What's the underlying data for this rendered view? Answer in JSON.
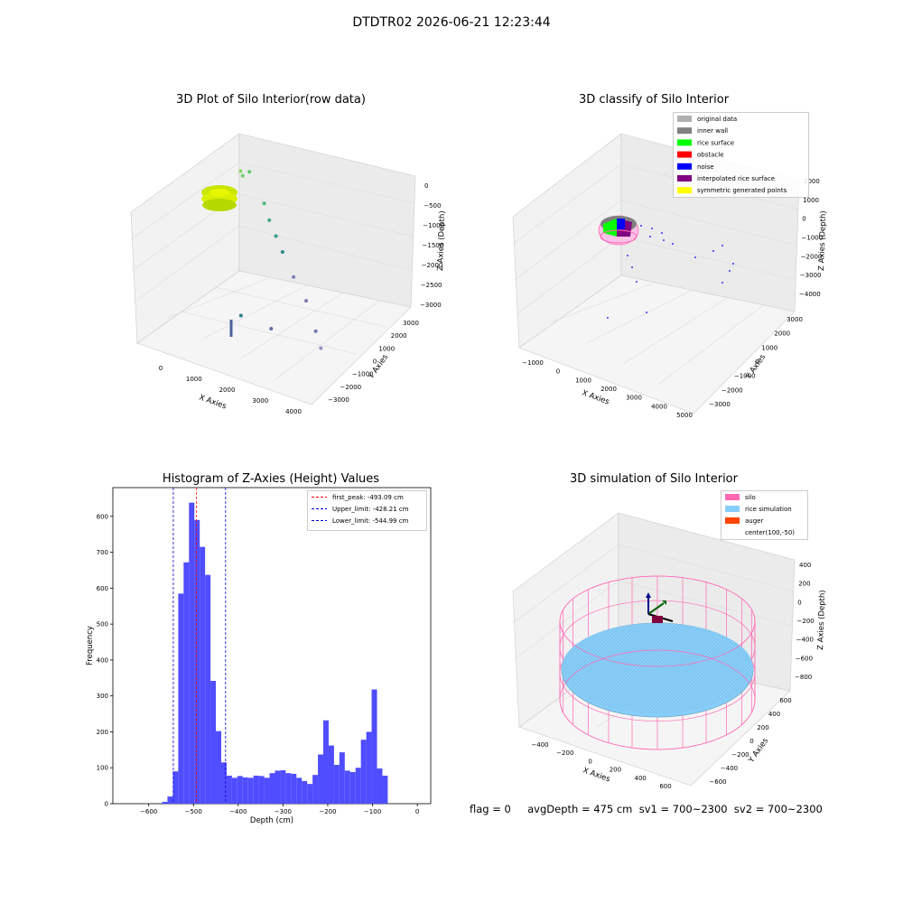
{
  "figure": {
    "suptitle": "DTDTR02 2026-06-21 12:23:44",
    "footer": "flag = 0     avgDepth = 475 cm  sv1 = 700~2300  sv2 = 700~2300"
  },
  "colors": {
    "hist_bar": "#4f4dff",
    "first_peak_line": "#ff0000",
    "limit_lines": "#0000cc",
    "pane": "#f2f2f2",
    "silo": "#ff69b4",
    "rice_sim": "#87cefa",
    "auger": "#ff4500",
    "original": "#b0b0b0",
    "inner_wall": "#808080",
    "rice_surface": "#00ff00",
    "obstacle": "#ff0000",
    "noise": "#0000ff",
    "interp_rice": "#800080",
    "symmetric": "#ffff00"
  },
  "chart_data": [
    {
      "type": "scatter",
      "projection": "3d",
      "title": "3D Plot of Silo Interior(row data)",
      "xlabel": "X Axies",
      "ylabel": "Y Axies",
      "zlabel": "Z Axies (Depth)",
      "xticks": [
        "0",
        "1000",
        "2000",
        "3000",
        "4000"
      ],
      "yticks": [
        "−3000",
        "−2000",
        "−1000",
        "0",
        "1000",
        "2000",
        "3000"
      ],
      "zticks": [
        "0",
        "−500",
        "−1000",
        "−1500",
        "−2000",
        "−2500",
        "−3000"
      ],
      "xlim": [
        -500,
        4200
      ],
      "ylim": [
        -3400,
        3400
      ],
      "zlim": [
        -3100,
        100
      ],
      "points": [
        {
          "x": 100,
          "y": 2000,
          "z": -300
        },
        {
          "x": 200,
          "y": 1900,
          "z": -350
        },
        {
          "x": 300,
          "y": 2100,
          "z": -280
        },
        {
          "x": 900,
          "y": 1600,
          "z": -700
        },
        {
          "x": 1200,
          "y": 1200,
          "z": -900
        },
        {
          "x": 1500,
          "y": 900,
          "z": -1100
        },
        {
          "x": 1800,
          "y": 600,
          "z": -1300
        },
        {
          "x": 2300,
          "y": 100,
          "z": -1600
        },
        {
          "x": 2800,
          "y": -300,
          "z": -1900
        },
        {
          "x": 3300,
          "y": -900,
          "z": -2300
        },
        {
          "x": 3600,
          "y": -1300,
          "z": -2500
        },
        {
          "x": 1000,
          "y": -200,
          "z": -2800
        },
        {
          "x": 2100,
          "y": -900,
          "z": -2600
        }
      ]
    },
    {
      "type": "scatter",
      "projection": "3d",
      "title": "3D classify of Silo Interior",
      "xlabel": "X Axies",
      "ylabel": "Y Axies",
      "zlabel": "Z Axies (Depth)",
      "xticks": [
        "−1000",
        "0",
        "1000",
        "2000",
        "3000",
        "4000",
        "5000"
      ],
      "yticks": [
        "−3000",
        "−2000",
        "−1000",
        "0",
        "1000",
        "2000",
        "3000"
      ],
      "zticks": [
        "2000",
        "1000",
        "0",
        "−1000",
        "−2000",
        "−3000",
        "−4000"
      ],
      "legend_position": "top-right",
      "legend": [
        "original data",
        "inner wall",
        "rice surface",
        "obstacle",
        "noise",
        "interpolated rice surface",
        "symmetric generated points"
      ]
    },
    {
      "type": "bar",
      "title": "Histogram of Z-Axies (Height) Values",
      "xlabel": "Depth (cm)",
      "ylabel": "Frequency",
      "xlim": [
        -680,
        30
      ],
      "ylim": [
        0,
        880
      ],
      "xticks": [
        -600,
        -500,
        -400,
        -300,
        -200,
        -100,
        0
      ],
      "yticks": [
        0,
        100,
        200,
        300,
        400,
        500,
        600,
        700,
        800
      ],
      "bin_start": -570,
      "bin_width": 12,
      "values": [
        5,
        20,
        90,
        585,
        672,
        838,
        790,
        715,
        637,
        342,
        202,
        115,
        78,
        72,
        77,
        73,
        72,
        78,
        77,
        72,
        85,
        92,
        93,
        85,
        83,
        72,
        63,
        55,
        80,
        137,
        232,
        162,
        108,
        143,
        92,
        88,
        100,
        178,
        200,
        318,
        98,
        78
      ],
      "vlines": [
        {
          "x": -493.09,
          "label": "first_peak: -493.09 cm",
          "color": "#ff0000"
        },
        {
          "x": -428.21,
          "label": "Upper_limit: -428.21 cm",
          "color": "#0000cc"
        },
        {
          "x": -544.99,
          "label": "Lower_limit: -544.99 cm",
          "color": "#0000cc"
        }
      ],
      "legend_position": "top-right"
    },
    {
      "type": "surface",
      "projection": "3d",
      "title": "3D simulation of Silo Interior",
      "xlabel": "X Axies",
      "ylabel": "Y Axies",
      "zlabel": "Z Axies (Depth)",
      "xticks": [
        "−400",
        "−200",
        "0",
        "200",
        "400",
        "600"
      ],
      "yticks": [
        "−600",
        "−400",
        "−200",
        "0",
        "200",
        "400",
        "600"
      ],
      "zticks": [
        "400",
        "200",
        "0",
        "−200",
        "−400",
        "−600",
        "−800"
      ],
      "legend_position": "top-right",
      "legend": [
        "silo",
        "rice simulation",
        "auger",
        "center(100,-50)"
      ]
    }
  ]
}
